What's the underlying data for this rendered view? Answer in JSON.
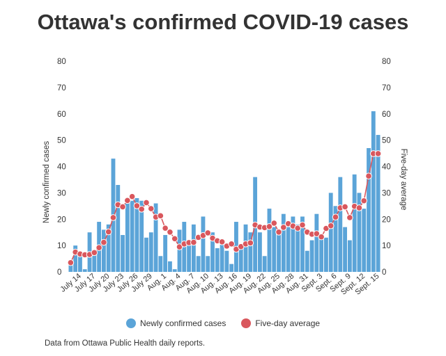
{
  "title": "Ottawa's confirmed COVID-19 cases",
  "source": "Data from Ottawa Public Health daily reports.",
  "colors": {
    "bars": "#5ba4d8",
    "line": "#d9575d",
    "title": "#333333"
  },
  "chart_data": {
    "type": "bar",
    "title": "Ottawa's confirmed COVID-19 cases",
    "ylabel": "Newly confirmed cases",
    "ylabel_right": "Five-day average",
    "ylim": [
      0,
      80
    ],
    "y_ticks": [
      0,
      10,
      20,
      30,
      40,
      50,
      60,
      70,
      80
    ],
    "grid": false,
    "legend_position": "bottom",
    "categories": [
      "July 12",
      "July 13",
      "July 14",
      "July 15",
      "July 16",
      "July 17",
      "July 18",
      "July 19",
      "July 20",
      "July 21",
      "July 22",
      "July 23",
      "July 24",
      "July 25",
      "July 26",
      "July 27",
      "July 28",
      "July 29",
      "July 30",
      "July 31",
      "Aug. 1",
      "Aug. 2",
      "Aug. 3",
      "Aug. 4",
      "Aug. 5",
      "Aug. 6",
      "Aug. 7",
      "Aug. 8",
      "Aug. 9",
      "Aug. 10",
      "Aug. 11",
      "Aug. 12",
      "Aug. 13",
      "Aug. 14",
      "Aug. 15",
      "Aug. 16",
      "Aug. 17",
      "Aug. 18",
      "Aug. 19",
      "Aug. 20",
      "Aug. 21",
      "Aug. 22",
      "Aug. 23",
      "Aug. 24",
      "Aug. 25",
      "Aug. 26",
      "Aug. 27",
      "Aug. 28",
      "Aug. 29",
      "Aug. 30",
      "Aug. 31",
      "Sept. 1",
      "Sept. 2",
      "Sept. 3",
      "Sept. 4",
      "Sept. 5",
      "Sept. 6",
      "Sept. 7",
      "Sept. 8",
      "Sept. 9",
      "Sept. 10",
      "Sept. 11",
      "Sept. 12",
      "Sept. 13",
      "Sept. 14",
      "Sept. 15"
    ],
    "x_tick_labels": [
      "July 14",
      "July 17",
      "July 20",
      "July 23",
      "July 26",
      "July 29",
      "Aug. 1",
      "Aug. 4",
      "Aug. 7",
      "Aug. 10",
      "Aug. 13",
      "Aug. 16",
      "Aug. 19",
      "Aug. 22",
      "Aug. 25",
      "Aug. 28",
      "Aug. 31",
      "Sept. 3",
      "Sept. 6",
      "Sept. 9",
      "Sept. 12",
      "Sept. 15"
    ],
    "series": [
      {
        "name": "Newly confirmed cases",
        "type": "bar",
        "values": [
          3,
          10,
          7,
          1,
          15,
          8,
          19,
          16,
          18,
          43,
          33,
          14,
          27,
          27,
          28,
          27,
          13,
          15,
          26,
          6,
          14,
          4,
          1,
          16,
          19,
          11,
          18,
          6,
          21,
          6,
          15,
          9,
          11,
          8,
          3,
          19,
          9,
          18,
          15,
          36,
          15,
          6,
          24,
          17,
          15,
          22,
          17,
          21,
          18,
          21,
          8,
          12,
          22,
          13,
          13,
          30,
          25,
          36,
          17,
          12,
          37,
          30,
          24,
          47,
          61,
          52
        ]
      },
      {
        "name": "Five-day average",
        "type": "line",
        "values": [
          3.5,
          7.5,
          6.8,
          6.5,
          6.6,
          7.3,
          9.2,
          11.2,
          15.2,
          20.6,
          25.5,
          24.7,
          27.1,
          28.6,
          25.1,
          23.8,
          26.3,
          24.0,
          20.8,
          21.3,
          16.6,
          15.1,
          12.6,
          9.5,
          10.6,
          11.1,
          11.2,
          13.1,
          13.8,
          14.8,
          12.8,
          11.8,
          11.4,
          9.8,
          10.6,
          8.6,
          9.6,
          10.6,
          11.0,
          17.8,
          17.0,
          16.8,
          17.2,
          18.5,
          15.1,
          16.9,
          18.3,
          17.4,
          16.6,
          17.8,
          15.1,
          14.3,
          14.5,
          13.3,
          16.5,
          17.5,
          20.8,
          24.3,
          24.7,
          20.6,
          24.9,
          24.3,
          27.0,
          36.4,
          44.9,
          44.9
        ]
      }
    ]
  },
  "legend": [
    {
      "label": "Newly confirmed cases",
      "color": "#5ba4d8"
    },
    {
      "label": "Five-day average",
      "color": "#d9575d"
    }
  ]
}
